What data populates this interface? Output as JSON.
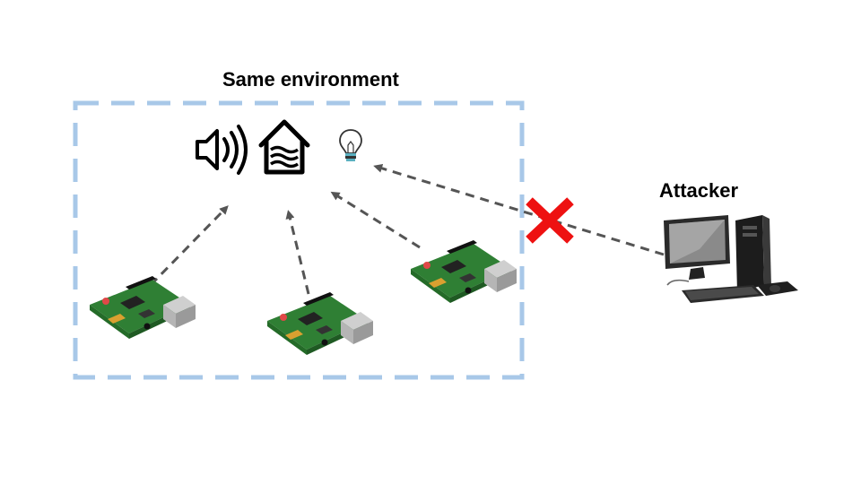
{
  "environment": {
    "title": "Same environment",
    "devices": [
      {
        "name": "speaker",
        "icon": "speaker-icon"
      },
      {
        "name": "smart-home",
        "icon": "smart-home-icon"
      },
      {
        "name": "light-bulb",
        "icon": "light-bulb-icon"
      }
    ],
    "boards": [
      {
        "name": "raspberry-pi-board-1",
        "icon": "raspberry-pi-board-icon"
      },
      {
        "name": "raspberry-pi-board-2",
        "icon": "raspberry-pi-board-icon"
      },
      {
        "name": "raspberry-pi-board-3",
        "icon": "raspberry-pi-board-icon"
      }
    ]
  },
  "attacker": {
    "label": "Attacker",
    "icon": "desktop-computer-icon"
  },
  "blocked_marker": {
    "icon": "red-cross-icon",
    "color": "#ee1111"
  },
  "colors": {
    "boundary": "#a8c8e8",
    "arrow": "#555555",
    "board_green": "#3c8a3a"
  }
}
